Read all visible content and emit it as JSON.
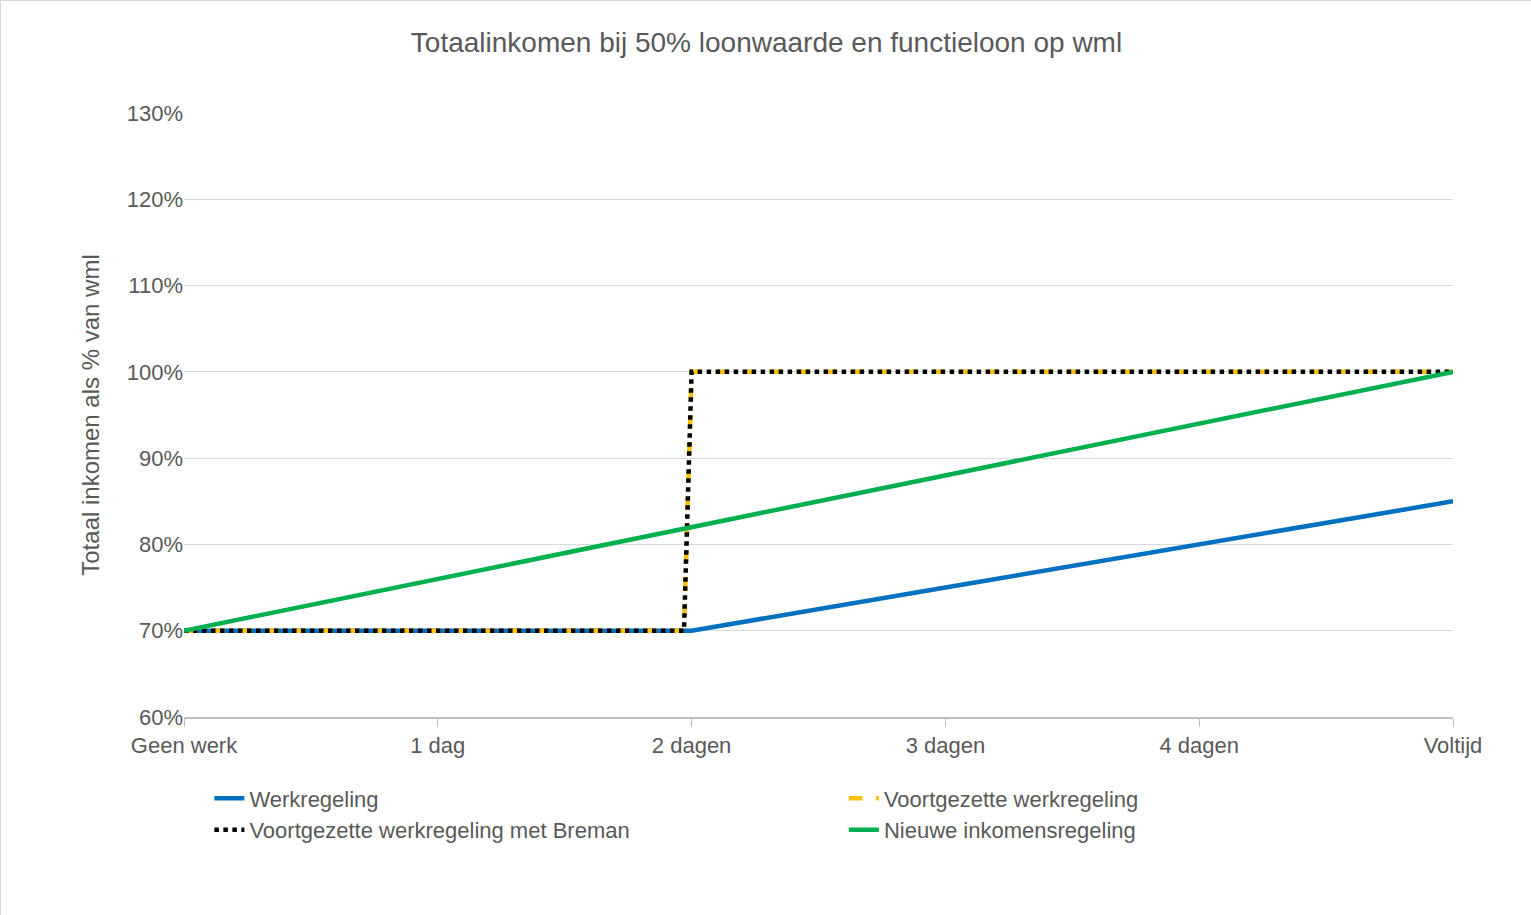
{
  "chart_data": {
    "type": "line",
    "title": "Totaalinkomen bij 50% loonwaarde en functieloon op wml",
    "y_label": "Totaal inkomen als % van wml",
    "x": [
      0,
      1,
      1.97,
      2,
      3,
      4,
      5
    ],
    "xlim": [
      0,
      5
    ],
    "xticks": [
      {
        "value": 0,
        "label": "Geen werk"
      },
      {
        "value": 1,
        "label": "1 dag"
      },
      {
        "value": 2,
        "label": "2 dagen"
      },
      {
        "value": 3,
        "label": "3 dagen"
      },
      {
        "value": 4,
        "label": "4 dagen"
      },
      {
        "value": 5,
        "label": "Voltijd"
      }
    ],
    "ylim": [
      60,
      130
    ],
    "yticks": [
      {
        "value": 60,
        "label": "60%"
      },
      {
        "value": 70,
        "label": "70%"
      },
      {
        "value": 80,
        "label": "80%"
      },
      {
        "value": 90,
        "label": "90%"
      },
      {
        "value": 100,
        "label": "100%"
      },
      {
        "value": 110,
        "label": "110%"
      },
      {
        "value": 120,
        "label": "120%"
      },
      {
        "value": 130,
        "label": "130%"
      }
    ],
    "grid": true,
    "legend": "bottom",
    "series": [
      {
        "name": "Werkregeling",
        "color": "#0070c0",
        "line_style": "solid",
        "values": [
          70,
          70,
          70,
          70,
          75,
          80,
          85
        ]
      },
      {
        "name": "Voortgezette werkregeling",
        "color": "#ffc000",
        "line_style": "dash",
        "values": [
          70,
          70,
          70,
          100,
          100,
          100,
          100
        ]
      },
      {
        "name": "Voortgezette werkregeling met Breman",
        "color": "#000000",
        "line_style": "dot",
        "values": [
          70,
          70,
          70,
          100,
          100,
          100,
          100
        ]
      },
      {
        "name": "Nieuwe inkomensregeling",
        "color": "#00b050",
        "line_style": "solid",
        "values": [
          70,
          76,
          81.8,
          82,
          88,
          94,
          100
        ]
      }
    ]
  }
}
